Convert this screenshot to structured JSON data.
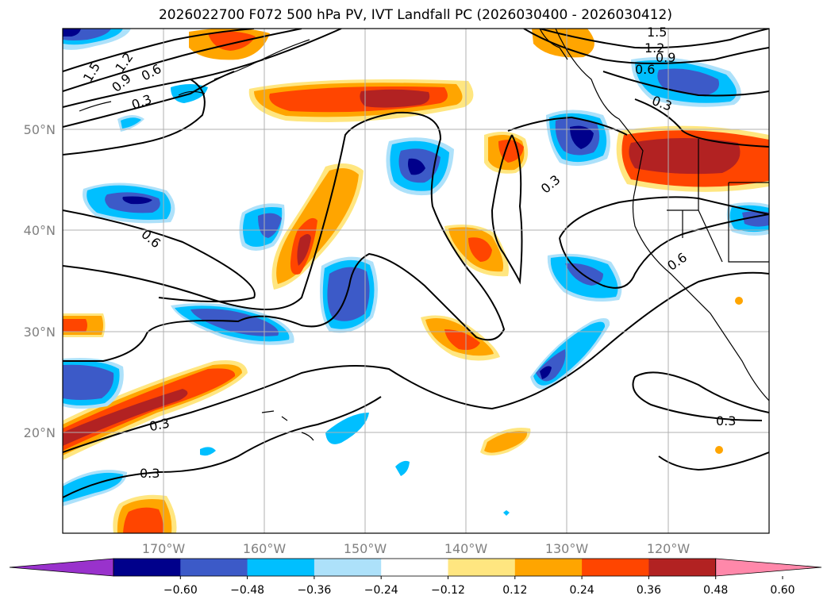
{
  "title": "2026022700 F072 500 hPa PV, IVT Landfall PC (2026030400 - 2026030412)",
  "map": {
    "lon_labels": [
      "170°W",
      "160°W",
      "150°W",
      "140°W",
      "130°W",
      "120°W"
    ],
    "lat_labels": [
      "50°N",
      "40°N",
      "30°N",
      "20°N"
    ],
    "contour_labels": [
      "1.5",
      "1.2",
      "0.9",
      "0.6",
      "0.3",
      "1.5",
      "1.2",
      "0.9",
      "0.6",
      "0.3",
      "0.6",
      "0.3",
      "0.6",
      "0.3",
      "0.3"
    ]
  },
  "colorbar": {
    "ticks": [
      "−0.60",
      "−0.48",
      "−0.36",
      "−0.24",
      "−0.12",
      "0.12",
      "0.24",
      "0.36",
      "0.48",
      "0.60"
    ],
    "colors": [
      "#9932cc",
      "#00008b",
      "#3c5ac8",
      "#00bfff",
      "#ade1fa",
      "#ffffff",
      "#ffe680",
      "#ffa500",
      "#ff4500",
      "#b22222",
      "#ff88aa"
    ]
  }
}
